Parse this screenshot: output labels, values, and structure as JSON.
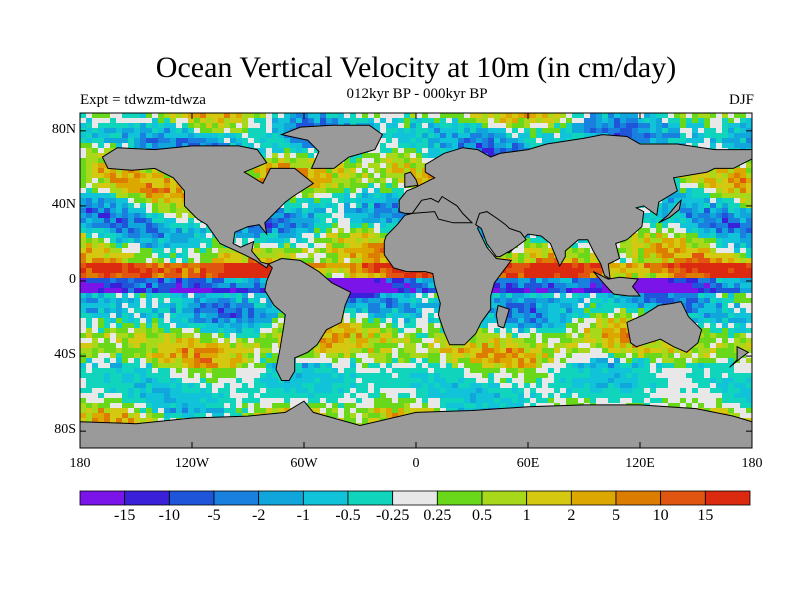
{
  "figure": {
    "title": "Ocean Vertical Velocity at 10m (in cm/day)",
    "subtitle": "012kyr BP - 000kyr BP",
    "experiment": "Expt = tdwzm-tdwza",
    "season": "DJF"
  },
  "axes": {
    "lat_labels": [
      "80N",
      "40N",
      "0",
      "40S",
      "80S"
    ],
    "lat_values": [
      80,
      40,
      0,
      -40,
      -80
    ],
    "lon_labels": [
      "180",
      "120W",
      "60W",
      "0",
      "60E",
      "120E",
      "180"
    ],
    "lon_values": [
      -180,
      -120,
      -60,
      0,
      60,
      120,
      180
    ]
  },
  "colorbar": {
    "labels": [
      "-15",
      "-10",
      "-5",
      "-2",
      "-1",
      "-0.5",
      "-0.25",
      "0.25",
      "0.5",
      "1",
      "2",
      "5",
      "10",
      "15"
    ],
    "colors": [
      "#7a14e8",
      "#3a20d8",
      "#1f55d8",
      "#1a80e0",
      "#10a6dc",
      "#10c3d8",
      "#10d4bb",
      "#e8e8e8",
      "#6ad81a",
      "#a8d81a",
      "#d4c810",
      "#dca800",
      "#dc7c00",
      "#e05610",
      "#dc2a10"
    ]
  },
  "land_color": "#9a9a9a"
}
